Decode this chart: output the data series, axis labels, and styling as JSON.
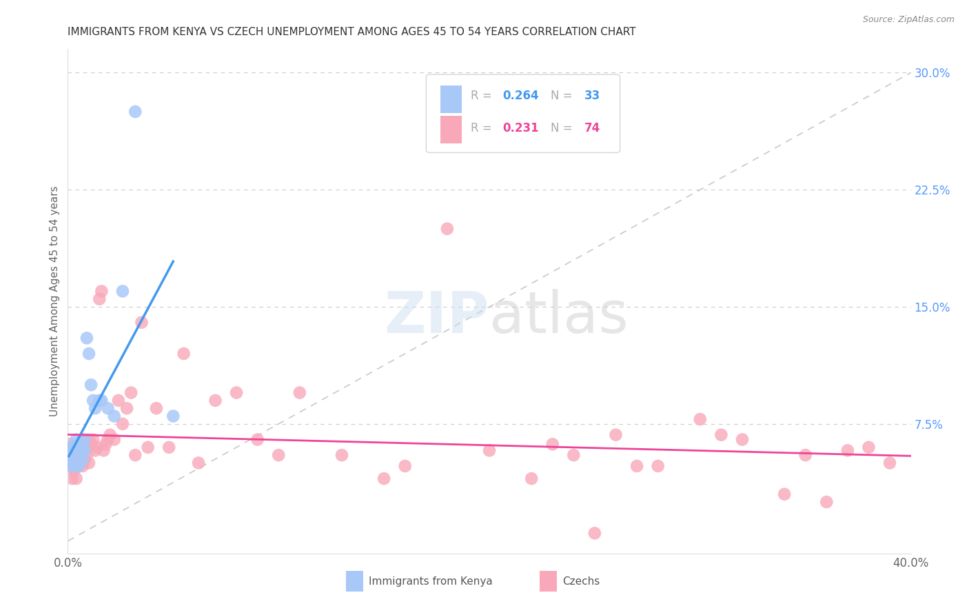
{
  "title": "IMMIGRANTS FROM KENYA VS CZECH UNEMPLOYMENT AMONG AGES 45 TO 54 YEARS CORRELATION CHART",
  "source": "Source: ZipAtlas.com",
  "ylabel": "Unemployment Among Ages 45 to 54 years",
  "xlim": [
    0.0,
    0.4
  ],
  "ylim": [
    -0.008,
    0.315
  ],
  "legend_r1": "R = ",
  "legend_v1": "0.264",
  "legend_n1_label": "N = ",
  "legend_n1": "33",
  "legend_r2": "R = ",
  "legend_v2": "0.231",
  "legend_n2_label": "N = ",
  "legend_n2": "74",
  "kenya_color": "#a8c8f8",
  "czech_color": "#f8a8b8",
  "kenya_line_color": "#4499ee",
  "czech_line_color": "#ee4499",
  "ref_line_color": "#bbbbbb",
  "kenya_x": [
    0.0005,
    0.001,
    0.001,
    0.0015,
    0.002,
    0.002,
    0.003,
    0.003,
    0.003,
    0.004,
    0.004,
    0.004,
    0.005,
    0.005,
    0.005,
    0.006,
    0.006,
    0.007,
    0.007,
    0.008,
    0.008,
    0.009,
    0.01,
    0.011,
    0.012,
    0.013,
    0.015,
    0.016,
    0.019,
    0.022,
    0.026,
    0.032,
    0.05
  ],
  "kenya_y": [
    0.05,
    0.06,
    0.055,
    0.048,
    0.06,
    0.052,
    0.06,
    0.055,
    0.05,
    0.065,
    0.058,
    0.048,
    0.06,
    0.055,
    0.048,
    0.062,
    0.055,
    0.06,
    0.052,
    0.065,
    0.058,
    0.13,
    0.12,
    0.1,
    0.09,
    0.085,
    0.09,
    0.09,
    0.085,
    0.08,
    0.16,
    0.275,
    0.08
  ],
  "czech_x": [
    0.0005,
    0.001,
    0.001,
    0.0015,
    0.002,
    0.002,
    0.002,
    0.003,
    0.003,
    0.003,
    0.004,
    0.004,
    0.004,
    0.005,
    0.005,
    0.005,
    0.006,
    0.006,
    0.007,
    0.007,
    0.007,
    0.008,
    0.008,
    0.009,
    0.01,
    0.01,
    0.011,
    0.012,
    0.013,
    0.014,
    0.015,
    0.016,
    0.017,
    0.018,
    0.019,
    0.02,
    0.022,
    0.024,
    0.026,
    0.028,
    0.03,
    0.032,
    0.035,
    0.038,
    0.042,
    0.048,
    0.055,
    0.062,
    0.07,
    0.08,
    0.09,
    0.1,
    0.11,
    0.13,
    0.15,
    0.16,
    0.18,
    0.2,
    0.22,
    0.24,
    0.26,
    0.28,
    0.3,
    0.32,
    0.34,
    0.35,
    0.36,
    0.37,
    0.38,
    0.39,
    0.25,
    0.23,
    0.27,
    0.31
  ],
  "czech_y": [
    0.055,
    0.062,
    0.052,
    0.058,
    0.048,
    0.055,
    0.04,
    0.06,
    0.052,
    0.045,
    0.058,
    0.048,
    0.04,
    0.062,
    0.055,
    0.048,
    0.06,
    0.05,
    0.058,
    0.065,
    0.048,
    0.06,
    0.052,
    0.055,
    0.065,
    0.05,
    0.062,
    0.065,
    0.058,
    0.06,
    0.155,
    0.16,
    0.058,
    0.062,
    0.065,
    0.068,
    0.065,
    0.09,
    0.075,
    0.085,
    0.095,
    0.055,
    0.14,
    0.06,
    0.085,
    0.06,
    0.12,
    0.05,
    0.09,
    0.095,
    0.065,
    0.055,
    0.095,
    0.055,
    0.04,
    0.048,
    0.2,
    0.058,
    0.04,
    0.055,
    0.068,
    0.048,
    0.078,
    0.065,
    0.03,
    0.055,
    0.025,
    0.058,
    0.06,
    0.05,
    0.005,
    0.062,
    0.048,
    0.068
  ]
}
